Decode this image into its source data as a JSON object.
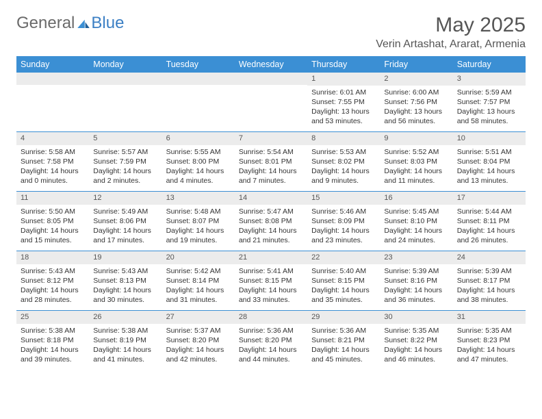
{
  "brand": {
    "part1": "General",
    "part2": "Blue"
  },
  "title": "May 2025",
  "location": "Verin Artashat, Ararat, Armenia",
  "colors": {
    "header_bg": "#3b8fd4",
    "rule": "#3b8fd4",
    "daynum_bg": "#ececec"
  },
  "day_headers": [
    "Sunday",
    "Monday",
    "Tuesday",
    "Wednesday",
    "Thursday",
    "Friday",
    "Saturday"
  ],
  "weeks": [
    [
      {
        "n": "",
        "sr": "",
        "ss": "",
        "dl": ""
      },
      {
        "n": "",
        "sr": "",
        "ss": "",
        "dl": ""
      },
      {
        "n": "",
        "sr": "",
        "ss": "",
        "dl": ""
      },
      {
        "n": "",
        "sr": "",
        "ss": "",
        "dl": ""
      },
      {
        "n": "1",
        "sr": "Sunrise: 6:01 AM",
        "ss": "Sunset: 7:55 PM",
        "dl": "Daylight: 13 hours and 53 minutes."
      },
      {
        "n": "2",
        "sr": "Sunrise: 6:00 AM",
        "ss": "Sunset: 7:56 PM",
        "dl": "Daylight: 13 hours and 56 minutes."
      },
      {
        "n": "3",
        "sr": "Sunrise: 5:59 AM",
        "ss": "Sunset: 7:57 PM",
        "dl": "Daylight: 13 hours and 58 minutes."
      }
    ],
    [
      {
        "n": "4",
        "sr": "Sunrise: 5:58 AM",
        "ss": "Sunset: 7:58 PM",
        "dl": "Daylight: 14 hours and 0 minutes."
      },
      {
        "n": "5",
        "sr": "Sunrise: 5:57 AM",
        "ss": "Sunset: 7:59 PM",
        "dl": "Daylight: 14 hours and 2 minutes."
      },
      {
        "n": "6",
        "sr": "Sunrise: 5:55 AM",
        "ss": "Sunset: 8:00 PM",
        "dl": "Daylight: 14 hours and 4 minutes."
      },
      {
        "n": "7",
        "sr": "Sunrise: 5:54 AM",
        "ss": "Sunset: 8:01 PM",
        "dl": "Daylight: 14 hours and 7 minutes."
      },
      {
        "n": "8",
        "sr": "Sunrise: 5:53 AM",
        "ss": "Sunset: 8:02 PM",
        "dl": "Daylight: 14 hours and 9 minutes."
      },
      {
        "n": "9",
        "sr": "Sunrise: 5:52 AM",
        "ss": "Sunset: 8:03 PM",
        "dl": "Daylight: 14 hours and 11 minutes."
      },
      {
        "n": "10",
        "sr": "Sunrise: 5:51 AM",
        "ss": "Sunset: 8:04 PM",
        "dl": "Daylight: 14 hours and 13 minutes."
      }
    ],
    [
      {
        "n": "11",
        "sr": "Sunrise: 5:50 AM",
        "ss": "Sunset: 8:05 PM",
        "dl": "Daylight: 14 hours and 15 minutes."
      },
      {
        "n": "12",
        "sr": "Sunrise: 5:49 AM",
        "ss": "Sunset: 8:06 PM",
        "dl": "Daylight: 14 hours and 17 minutes."
      },
      {
        "n": "13",
        "sr": "Sunrise: 5:48 AM",
        "ss": "Sunset: 8:07 PM",
        "dl": "Daylight: 14 hours and 19 minutes."
      },
      {
        "n": "14",
        "sr": "Sunrise: 5:47 AM",
        "ss": "Sunset: 8:08 PM",
        "dl": "Daylight: 14 hours and 21 minutes."
      },
      {
        "n": "15",
        "sr": "Sunrise: 5:46 AM",
        "ss": "Sunset: 8:09 PM",
        "dl": "Daylight: 14 hours and 23 minutes."
      },
      {
        "n": "16",
        "sr": "Sunrise: 5:45 AM",
        "ss": "Sunset: 8:10 PM",
        "dl": "Daylight: 14 hours and 24 minutes."
      },
      {
        "n": "17",
        "sr": "Sunrise: 5:44 AM",
        "ss": "Sunset: 8:11 PM",
        "dl": "Daylight: 14 hours and 26 minutes."
      }
    ],
    [
      {
        "n": "18",
        "sr": "Sunrise: 5:43 AM",
        "ss": "Sunset: 8:12 PM",
        "dl": "Daylight: 14 hours and 28 minutes."
      },
      {
        "n": "19",
        "sr": "Sunrise: 5:43 AM",
        "ss": "Sunset: 8:13 PM",
        "dl": "Daylight: 14 hours and 30 minutes."
      },
      {
        "n": "20",
        "sr": "Sunrise: 5:42 AM",
        "ss": "Sunset: 8:14 PM",
        "dl": "Daylight: 14 hours and 31 minutes."
      },
      {
        "n": "21",
        "sr": "Sunrise: 5:41 AM",
        "ss": "Sunset: 8:15 PM",
        "dl": "Daylight: 14 hours and 33 minutes."
      },
      {
        "n": "22",
        "sr": "Sunrise: 5:40 AM",
        "ss": "Sunset: 8:15 PM",
        "dl": "Daylight: 14 hours and 35 minutes."
      },
      {
        "n": "23",
        "sr": "Sunrise: 5:39 AM",
        "ss": "Sunset: 8:16 PM",
        "dl": "Daylight: 14 hours and 36 minutes."
      },
      {
        "n": "24",
        "sr": "Sunrise: 5:39 AM",
        "ss": "Sunset: 8:17 PM",
        "dl": "Daylight: 14 hours and 38 minutes."
      }
    ],
    [
      {
        "n": "25",
        "sr": "Sunrise: 5:38 AM",
        "ss": "Sunset: 8:18 PM",
        "dl": "Daylight: 14 hours and 39 minutes."
      },
      {
        "n": "26",
        "sr": "Sunrise: 5:38 AM",
        "ss": "Sunset: 8:19 PM",
        "dl": "Daylight: 14 hours and 41 minutes."
      },
      {
        "n": "27",
        "sr": "Sunrise: 5:37 AM",
        "ss": "Sunset: 8:20 PM",
        "dl": "Daylight: 14 hours and 42 minutes."
      },
      {
        "n": "28",
        "sr": "Sunrise: 5:36 AM",
        "ss": "Sunset: 8:20 PM",
        "dl": "Daylight: 14 hours and 44 minutes."
      },
      {
        "n": "29",
        "sr": "Sunrise: 5:36 AM",
        "ss": "Sunset: 8:21 PM",
        "dl": "Daylight: 14 hours and 45 minutes."
      },
      {
        "n": "30",
        "sr": "Sunrise: 5:35 AM",
        "ss": "Sunset: 8:22 PM",
        "dl": "Daylight: 14 hours and 46 minutes."
      },
      {
        "n": "31",
        "sr": "Sunrise: 5:35 AM",
        "ss": "Sunset: 8:23 PM",
        "dl": "Daylight: 14 hours and 47 minutes."
      }
    ]
  ]
}
